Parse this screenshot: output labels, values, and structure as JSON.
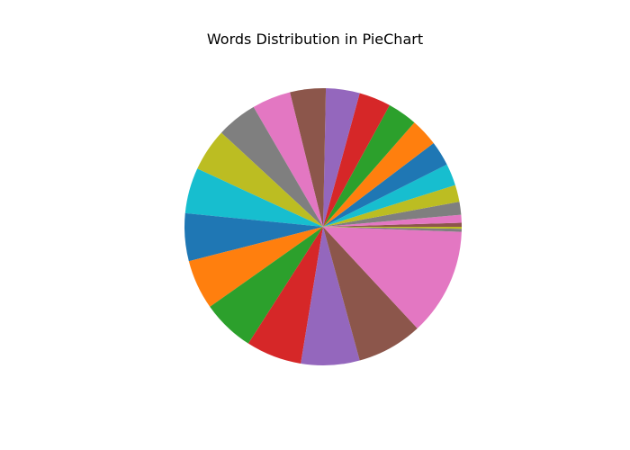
{
  "chart_data": {
    "type": "pie",
    "title": "Words Distribution in PieChart",
    "start_angle_deg": 0,
    "direction": "counterclockwise",
    "slices": [
      {
        "value": 0.4,
        "color": "#8c564b"
      },
      {
        "value": 0.8,
        "color": "#e377c2"
      },
      {
        "value": 1.3,
        "color": "#7f7f7f"
      },
      {
        "value": 1.7,
        "color": "#bcbd22"
      },
      {
        "value": 2.2,
        "color": "#17becf"
      },
      {
        "value": 2.5,
        "color": "#1f77b4"
      },
      {
        "value": 2.8,
        "color": "#ff7f0e"
      },
      {
        "value": 3.0,
        "color": "#2ca02c"
      },
      {
        "value": 3.2,
        "color": "#d62728"
      },
      {
        "value": 3.4,
        "color": "#9467bd"
      },
      {
        "value": 3.6,
        "color": "#8c564b"
      },
      {
        "value": 3.9,
        "color": "#e377c2"
      },
      {
        "value": 4.1,
        "color": "#7f7f7f"
      },
      {
        "value": 4.3,
        "color": "#bcbd22"
      },
      {
        "value": 4.6,
        "color": "#17becf"
      },
      {
        "value": 4.8,
        "color": "#1f77b4"
      },
      {
        "value": 5.0,
        "color": "#ff7f0e"
      },
      {
        "value": 5.3,
        "color": "#2ca02c"
      },
      {
        "value": 5.6,
        "color": "#d62728"
      },
      {
        "value": 5.9,
        "color": "#9467bd"
      },
      {
        "value": 6.6,
        "color": "#8c564b"
      },
      {
        "value": 10.8,
        "color": "#e377c2"
      },
      {
        "value": 0.3,
        "color": "#7f7f7f"
      },
      {
        "value": 0.2,
        "color": "#bcbd22"
      }
    ]
  }
}
